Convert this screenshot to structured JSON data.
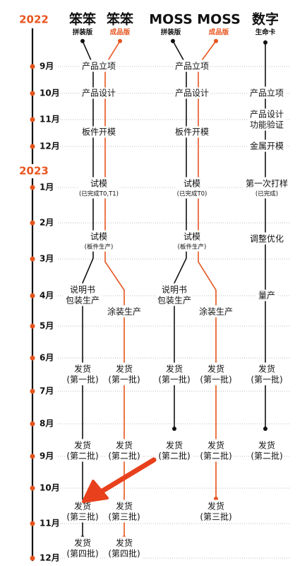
{
  "years": [
    "2022",
    "2023"
  ],
  "months": [
    "9月",
    "10月",
    "11月",
    "12月",
    "1月",
    "2月",
    "3月",
    "4月",
    "5月",
    "6月",
    "7月",
    "8月",
    "9月",
    "10月",
    "11月",
    "12月"
  ],
  "columns": [
    {
      "name": "笨笨",
      "edition": "拼装版"
    },
    {
      "name": "笨笨",
      "edition": "成品版"
    },
    {
      "name": "MOSS",
      "edition": "拼装版"
    },
    {
      "name": "MOSS",
      "edition": "成品版"
    },
    {
      "name": "数字",
      "edition": "生命卡"
    }
  ],
  "nodes": [
    {
      "lines": [
        "产品立项"
      ]
    },
    {
      "lines": [
        "产品设计"
      ]
    },
    {
      "lines": [
        "板件开模"
      ]
    },
    {
      "lines": [
        "试模"
      ],
      "note": "(已完成T0,T1)"
    },
    {
      "lines": [
        "试模"
      ],
      "note": "(板件生产)"
    },
    {
      "lines": [
        "说明书",
        "包装生产"
      ]
    },
    {
      "lines": [
        "发货",
        "(第一批)"
      ]
    },
    {
      "lines": [
        "发货",
        "(第二批)"
      ]
    },
    {
      "lines": [
        "发货",
        "(第三批)"
      ]
    },
    {
      "lines": [
        "发货",
        "(第四批)"
      ]
    },
    {
      "lines": [
        "涂装生产"
      ]
    },
    {
      "lines": [
        "发货",
        "(第一批)"
      ]
    },
    {
      "lines": [
        "发货",
        "(第二批)"
      ]
    },
    {
      "lines": [
        "发货",
        "(第三批)"
      ]
    },
    {
      "lines": [
        "发货",
        "(第四批)"
      ]
    },
    {
      "lines": [
        "产品立项"
      ]
    },
    {
      "lines": [
        "产品设计"
      ]
    },
    {
      "lines": [
        "板件开模"
      ]
    },
    {
      "lines": [
        "试模"
      ],
      "note": "(已完成T0)"
    },
    {
      "lines": [
        "试模"
      ],
      "note": "(板件生产)"
    },
    {
      "lines": [
        "说明书",
        "包装生产"
      ]
    },
    {
      "lines": [
        "发货",
        "(第一批)"
      ]
    },
    {
      "lines": [
        "发货",
        "(第二批)"
      ]
    },
    {
      "lines": [
        "涂装生产"
      ]
    },
    {
      "lines": [
        "发货",
        "(第一批)"
      ]
    },
    {
      "lines": [
        "发货",
        "(第二批)"
      ]
    },
    {
      "lines": [
        "发货",
        "(第三批)"
      ]
    },
    {
      "lines": [
        "产品立项"
      ]
    },
    {
      "lines": [
        "产品设计",
        "功能验证"
      ]
    },
    {
      "lines": [
        "金属开模"
      ]
    },
    {
      "lines": [
        "第一次打样"
      ],
      "note": "(已完成)"
    },
    {
      "lines": [
        "调整优化"
      ]
    },
    {
      "lines": [
        "量产"
      ]
    },
    {
      "lines": [
        "发货",
        "(第一批)"
      ]
    },
    {
      "lines": [
        "发货",
        "(第二批)"
      ]
    }
  ]
}
